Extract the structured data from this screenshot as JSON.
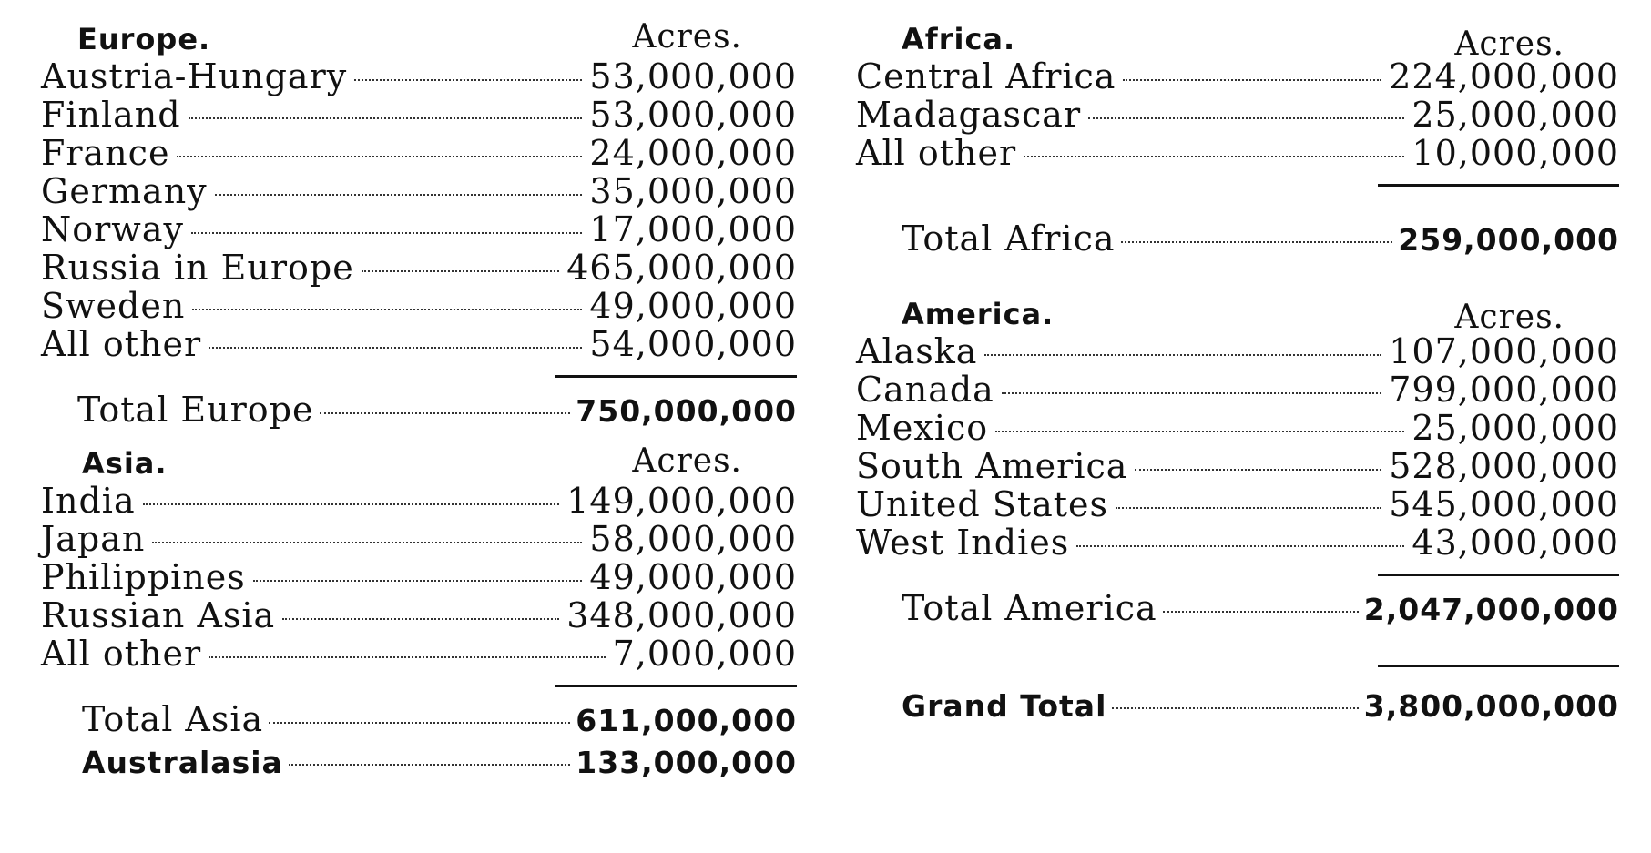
{
  "left": {
    "europe": {
      "title": "Europe.",
      "acres_label": "Acres.",
      "rows": [
        {
          "name": "Austria-Hungary",
          "value": "53,000,000"
        },
        {
          "name": "Finland",
          "value": "53,000,000"
        },
        {
          "name": "France",
          "value": "24,000,000"
        },
        {
          "name": "Germany",
          "value": "35,000,000"
        },
        {
          "name": "Norway",
          "value": "17,000,000"
        },
        {
          "name": "Russia in Europe",
          "value": "465,000,000"
        },
        {
          "name": "Sweden",
          "value": "49,000,000"
        },
        {
          "name": "All other",
          "value": "54,000,000"
        }
      ],
      "total_label": "Total Europe",
      "total_value": "750,000,000"
    },
    "asia": {
      "title": "Asia.",
      "acres_label": "Acres.",
      "rows": [
        {
          "name": "India",
          "value": "149,000,000"
        },
        {
          "name": "Japan",
          "value": "58,000,000"
        },
        {
          "name": "Philippines",
          "value": "49,000,000"
        },
        {
          "name": "Russian Asia",
          "value": "348,000,000"
        },
        {
          "name": "All other",
          "value": "7,000,000"
        }
      ],
      "total_label": "Total Asia",
      "total_value": "611,000,000"
    },
    "australasia": {
      "label": "Australasia",
      "value": "133,000,000"
    }
  },
  "right": {
    "africa": {
      "title": "Africa.",
      "acres_label": "Acres.",
      "rows": [
        {
          "name": "Central Africa",
          "value": "224,000,000"
        },
        {
          "name": "Madagascar",
          "value": "25,000,000"
        },
        {
          "name": "All other",
          "value": "10,000,000"
        }
      ],
      "total_label": "Total Africa",
      "total_value": "259,000,000"
    },
    "america": {
      "title": "America.",
      "acres_label": "Acres.",
      "rows": [
        {
          "name": "Alaska",
          "value": "107,000,000"
        },
        {
          "name": "Canada",
          "value": "799,000,000"
        },
        {
          "name": "Mexico",
          "value": "25,000,000"
        },
        {
          "name": "South America",
          "value": "528,000,000"
        },
        {
          "name": "United States",
          "value": "545,000,000"
        },
        {
          "name": "West Indies",
          "value": "43,000,000"
        }
      ],
      "total_label": "Total America",
      "total_value": "2,047,000,000"
    },
    "grand_total": {
      "label": "Grand Total",
      "value": "3,800,000,000"
    }
  }
}
